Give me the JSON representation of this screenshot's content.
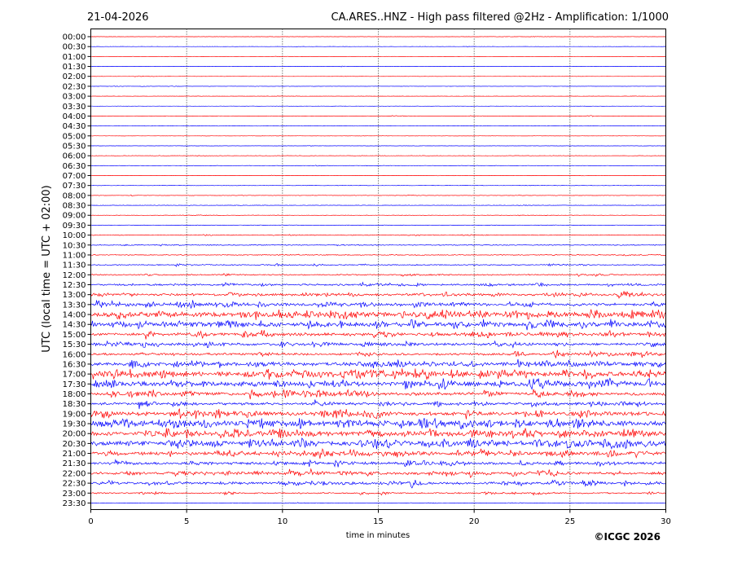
{
  "header": {
    "date": "21-04-2026",
    "title": "CA.ARES..HNZ - High pass filtered @2Hz - Amplification: 1/1000"
  },
  "copyright": "©ICGC 2026",
  "chart_data": {
    "type": "line",
    "subtype": "helicorder",
    "xlabel": "time in minutes",
    "ylabel": "UTC (local time = UTC + 02:00)",
    "xlim": [
      0,
      30
    ],
    "x_ticks": [
      "0",
      "5",
      "10",
      "15",
      "20",
      "25",
      "30"
    ],
    "grid_vertical_at": [
      5,
      10,
      15,
      20,
      25
    ],
    "trace_colors": [
      "#ff0000",
      "#0000ff"
    ],
    "color_rule": "alternating per row, starting red at 00:00",
    "rows": [
      {
        "label": "00:00",
        "level": 0.2
      },
      {
        "label": "00:30",
        "level": 0.2
      },
      {
        "label": "01:00",
        "level": 0.2
      },
      {
        "label": "01:30",
        "level": 0.2
      },
      {
        "label": "02:00",
        "level": 0.2
      },
      {
        "label": "02:30",
        "level": 0.2
      },
      {
        "label": "03:00",
        "level": 0.2
      },
      {
        "label": "03:30",
        "level": 0.2
      },
      {
        "label": "04:00",
        "level": 0.3
      },
      {
        "label": "04:30",
        "level": 0.2
      },
      {
        "label": "05:00",
        "level": 0.2
      },
      {
        "label": "05:30",
        "level": 0.2
      },
      {
        "label": "06:00",
        "level": 0.3
      },
      {
        "label": "06:30",
        "level": 0.3
      },
      {
        "label": "07:00",
        "level": 0.2
      },
      {
        "label": "07:30",
        "level": 0.3
      },
      {
        "label": "08:00",
        "level": 0.3
      },
      {
        "label": "08:30",
        "level": 0.3
      },
      {
        "label": "09:00",
        "level": 0.3
      },
      {
        "label": "09:30",
        "level": 0.4
      },
      {
        "label": "10:00",
        "level": 0.5
      },
      {
        "label": "10:30",
        "level": 0.6
      },
      {
        "label": "11:00",
        "level": 0.6
      },
      {
        "label": "11:30",
        "level": 0.7
      },
      {
        "label": "12:00",
        "level": 0.8
      },
      {
        "label": "12:30",
        "level": 1.2
      },
      {
        "label": "13:00",
        "level": 1.6
      },
      {
        "label": "13:30",
        "level": 2.0
      },
      {
        "label": "14:00",
        "level": 3.0
      },
      {
        "label": "14:30",
        "level": 2.6
      },
      {
        "label": "15:00",
        "level": 2.0
      },
      {
        "label": "15:30",
        "level": 1.7
      },
      {
        "label": "16:00",
        "level": 1.6
      },
      {
        "label": "16:30",
        "level": 2.4
      },
      {
        "label": "17:00",
        "level": 3.0
      },
      {
        "label": "17:30",
        "level": 3.0
      },
      {
        "label": "18:00",
        "level": 2.2
      },
      {
        "label": "18:30",
        "level": 1.8
      },
      {
        "label": "19:00",
        "level": 2.6
      },
      {
        "label": "19:30",
        "level": 3.4
      },
      {
        "label": "20:00",
        "level": 3.0
      },
      {
        "label": "20:30",
        "level": 3.2
      },
      {
        "label": "21:00",
        "level": 2.4
      },
      {
        "label": "21:30",
        "level": 1.8
      },
      {
        "label": "22:00",
        "level": 1.8
      },
      {
        "label": "22:30",
        "level": 1.6
      },
      {
        "label": "23:00",
        "level": 0.9
      },
      {
        "label": "23:30",
        "level": 0.3
      }
    ]
  }
}
